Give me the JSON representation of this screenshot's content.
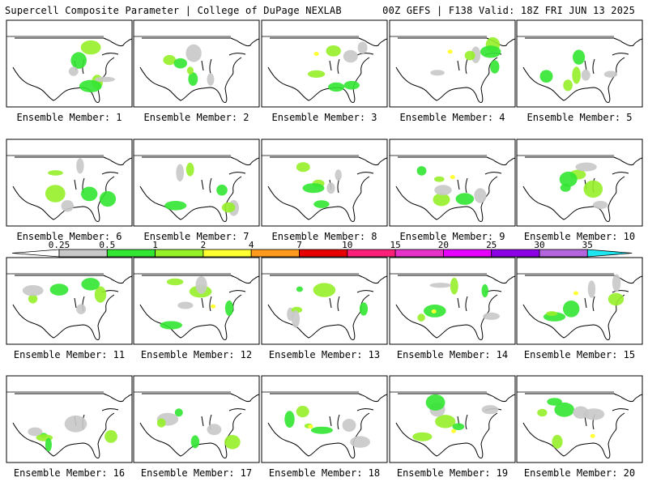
{
  "header": {
    "title": "Supercell Composite Parameter | College of DuPage NEXLAB",
    "run": "00Z GEFS | F138 Valid: 18Z FRI JUN 13 2025"
  },
  "members": [
    {
      "label": "Ensemble Member: 1"
    },
    {
      "label": "Ensemble Member: 2"
    },
    {
      "label": "Ensemble Member: 3"
    },
    {
      "label": "Ensemble Member: 4"
    },
    {
      "label": "Ensemble Member: 5"
    },
    {
      "label": "Ensemble Member: 6"
    },
    {
      "label": "Ensemble Member: 7"
    },
    {
      "label": "Ensemble Member: 8"
    },
    {
      "label": "Ensemble Member: 9"
    },
    {
      "label": "Ensemble Member: 10"
    },
    {
      "label": "Ensemble Member: 11"
    },
    {
      "label": "Ensemble Member: 12"
    },
    {
      "label": "Ensemble Member: 13"
    },
    {
      "label": "Ensemble Member: 14"
    },
    {
      "label": "Ensemble Member: 15"
    },
    {
      "label": "Ensemble Member: 16"
    },
    {
      "label": "Ensemble Member: 17"
    },
    {
      "label": "Ensemble Member: 18"
    },
    {
      "label": "Ensemble Member: 19"
    },
    {
      "label": "Ensemble Member: 20"
    }
  ],
  "colorbar": {
    "labels": [
      "0.25",
      "0.5",
      "1",
      "2",
      "4",
      "7",
      "10",
      "15",
      "20",
      "25",
      "30",
      "35"
    ],
    "colors": [
      "#c8c8c8",
      "#32e632",
      "#96f028",
      "#ffff32",
      "#ff9a1e",
      "#e60000",
      "#ff1e78",
      "#e632c8",
      "#e600ff",
      "#8c00e6",
      "#b464dc",
      "#1ee6f0"
    ]
  }
}
